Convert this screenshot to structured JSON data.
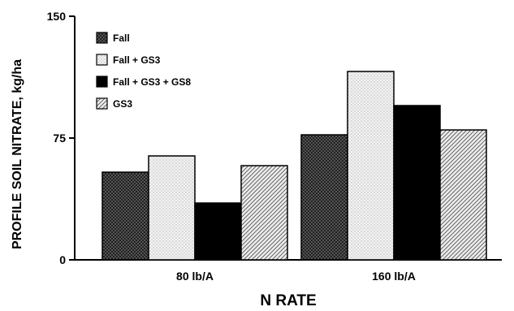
{
  "chart_data": {
    "type": "bar",
    "xlabel": "N RATE",
    "ylabel": "PROFILE SOIL NITRATE, kg/ha",
    "categories": [
      "80 lb/A",
      "160 lb/A"
    ],
    "ylim": [
      0,
      150
    ],
    "yticks": [
      "0",
      "75",
      "150"
    ],
    "grid": false,
    "legend_position": "top-left",
    "series": [
      {
        "name": "Fall",
        "values": [
          54,
          77
        ],
        "pattern": "crosshatch"
      },
      {
        "name": "Fall + GS3",
        "values": [
          64,
          116
        ],
        "pattern": "dots"
      },
      {
        "name": "Fall + GS3 + GS8",
        "values": [
          35,
          95
        ],
        "pattern": "solid"
      },
      {
        "name": "GS3",
        "values": [
          58,
          80
        ],
        "pattern": "diagonal"
      }
    ]
  }
}
